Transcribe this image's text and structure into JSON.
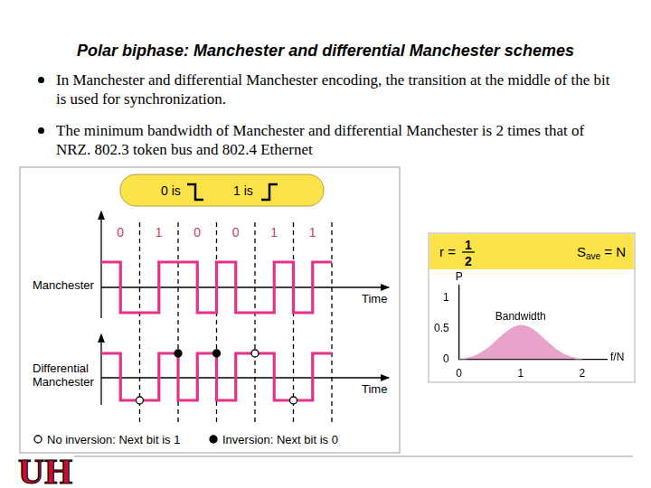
{
  "title": "Polar biphase: Manchester and differential Manchester schemes",
  "bullets": [
    "In Manchester and differential Manchester encoding, the transition at the middle of the bit is used for synchronization.",
    "The minimum bandwidth of Manchester and differential Manchester is 2 times that of NRZ. 802.3 token bus and 802.4 Ethernet"
  ],
  "encoding_key": {
    "zero": "0 is",
    "one": "1 is"
  },
  "bits": [
    0,
    1,
    0,
    0,
    1,
    1
  ],
  "waveforms": [
    {
      "name": [
        "Manchester"
      ],
      "scheme": "manchester",
      "axis_label": "Time",
      "color": "#e4318a"
    },
    {
      "name": [
        "Differential",
        "Manchester"
      ],
      "scheme": "differential",
      "axis_label": "Time",
      "color": "#e4318a"
    }
  ],
  "markers": {
    "no_inversion": "No inversion: Next bit is 1",
    "inversion": "Inversion: Next bit is 0"
  },
  "rate_box": {
    "r_label": "r =",
    "r_numerator": 1,
    "r_denominator": 2,
    "s_label": "S",
    "s_subscript": "ave",
    "s_value": "= N"
  },
  "chart_data": {
    "type": "area",
    "xlabel": "f/N",
    "ylabel": "P",
    "annotations": [
      "Bandwidth"
    ],
    "x": [
      0,
      0.1,
      0.2,
      0.3,
      0.4,
      0.5,
      0.6,
      0.7,
      0.8,
      0.9,
      1.0,
      1.1,
      1.2,
      1.3,
      1.4,
      1.5,
      1.6,
      1.7,
      1.8,
      1.9,
      2.0
    ],
    "values": [
      0,
      0.01,
      0.03,
      0.07,
      0.13,
      0.2,
      0.29,
      0.38,
      0.46,
      0.52,
      0.55,
      0.53,
      0.48,
      0.4,
      0.31,
      0.22,
      0.14,
      0.08,
      0.04,
      0.01,
      0
    ],
    "color": "#e9a3cb",
    "xlim": [
      0,
      2.4
    ],
    "ylim": [
      0,
      1.2
    ],
    "xticks": [
      0,
      1,
      2
    ],
    "yticks": [
      0,
      0.5,
      1
    ],
    "grid": false
  },
  "logo": "UH"
}
